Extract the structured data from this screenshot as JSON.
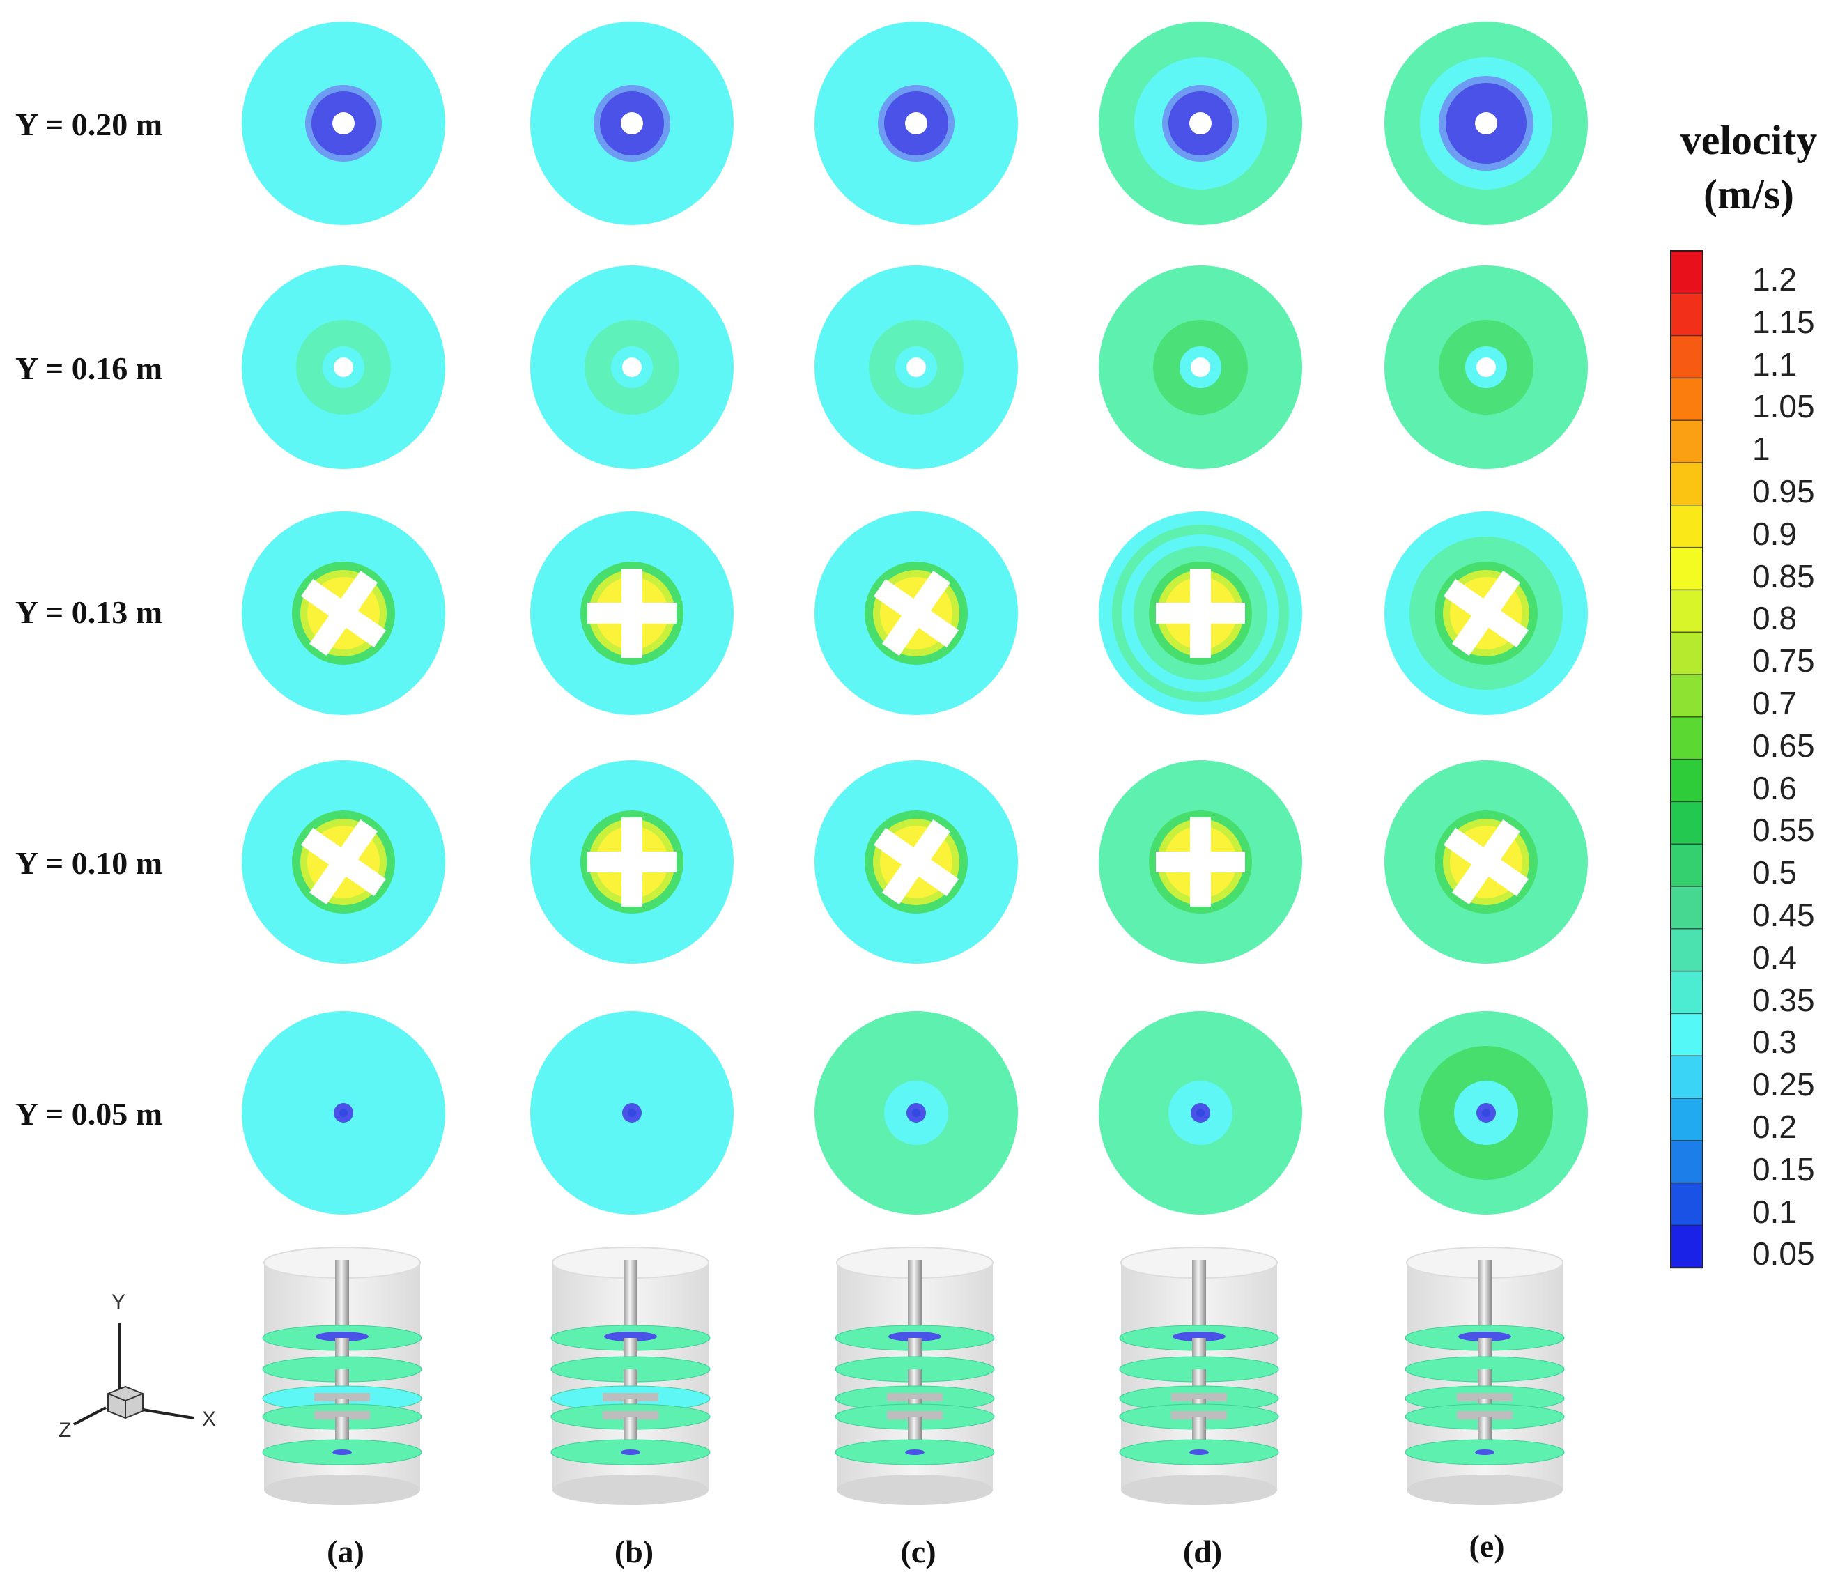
{
  "row_labels": [
    "Y = 0.20 m",
    "Y = 0.16 m",
    "Y = 0.13 m",
    "Y = 0.10 m",
    "Y = 0.05 m"
  ],
  "column_labels": [
    "(a)",
    "(b)",
    "(c)",
    "(d)",
    "(e)"
  ],
  "legend": {
    "title_line1": "velocity",
    "title_line2": "(m/s)",
    "ticks": [
      "1.2",
      "1.15",
      "1.1",
      "1.05",
      "1",
      "0.95",
      "0.9",
      "0.85",
      "0.8",
      "0.75",
      "0.7",
      "0.65",
      "0.6",
      "0.55",
      "0.5",
      "0.45",
      "0.4",
      "0.35",
      "0.3",
      "0.25",
      "0.2",
      "0.15",
      "0.1",
      "0.05"
    ],
    "colors_top_to_bottom": [
      "#e8101a",
      "#f2301a",
      "#f75a12",
      "#fa7d0e",
      "#fba012",
      "#fcc412",
      "#fbe818",
      "#f4fb20",
      "#d8f52a",
      "#b6ea2e",
      "#8ee232",
      "#5cd832",
      "#2ecc38",
      "#22c850",
      "#34d070",
      "#46d890",
      "#4ce2b0",
      "#4cecd2",
      "#54f8f6",
      "#3ad4f6",
      "#22aaf0",
      "#1c7ee8",
      "#1a52e6",
      "#1a22e8"
    ]
  },
  "axes_triad": {
    "x_label": "X",
    "y_label": "Y",
    "z_label": "Z"
  },
  "field_colors": {
    "cyan": "#5ff6f6",
    "mint": "#5ef0ae",
    "green": "#48de6e",
    "yellow_green": "#c8f03c",
    "yellow": "#fbf23a",
    "blue": "#4a52e8",
    "deep_blue": "#3448e2",
    "light_blue": "#6e9cf2",
    "hole": "#ffffff"
  },
  "panels_background": [
    [
      "cyan",
      "cyan",
      "cyan",
      "mint",
      "mint"
    ],
    [
      "cyan",
      "cyan",
      "cyan",
      "mint",
      "mint"
    ],
    [
      "cyan",
      "cyan",
      "cyan",
      "cyan",
      "cyan"
    ],
    [
      "cyan",
      "cyan",
      "cyan",
      "mint",
      "mint"
    ],
    [
      "cyan",
      "cyan",
      "mint",
      "mint",
      "mint"
    ]
  ]
}
